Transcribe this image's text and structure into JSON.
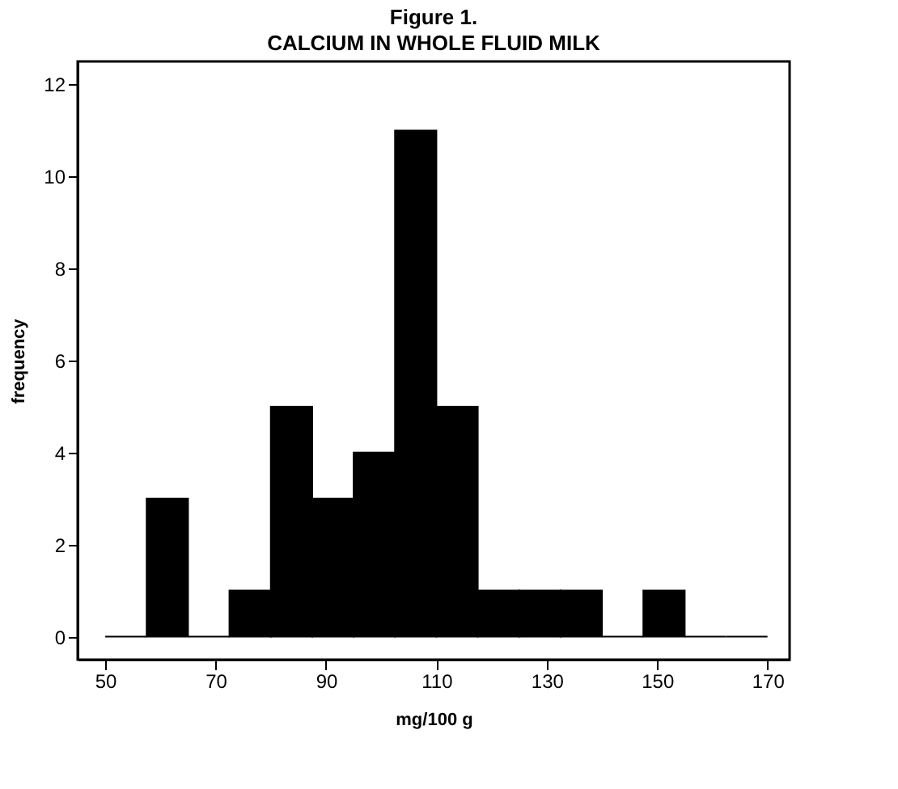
{
  "chart_data": {
    "type": "histogram",
    "title": "Figure 1.",
    "subtitle": "CALCIUM IN WHOLE FLUID MILK",
    "xlabel": "mg/100 g",
    "ylabel": "frequency",
    "bins": [
      50,
      57.5,
      65,
      72.5,
      80,
      87.5,
      95,
      102.5,
      110,
      117.5,
      125,
      132.5,
      140,
      147.5,
      155,
      162.5,
      170
    ],
    "values": [
      0,
      3,
      0,
      1,
      5,
      3,
      4,
      11,
      5,
      1,
      1,
      1,
      0,
      1,
      0,
      0
    ],
    "color": "#000000",
    "xlim": [
      45,
      174
    ],
    "xticks": [
      50,
      70,
      90,
      110,
      130,
      150,
      170
    ],
    "ylim": [
      -0.5,
      12.5
    ],
    "yticks": [
      0,
      2,
      4,
      6,
      8,
      10,
      12
    ],
    "grid": false
  }
}
